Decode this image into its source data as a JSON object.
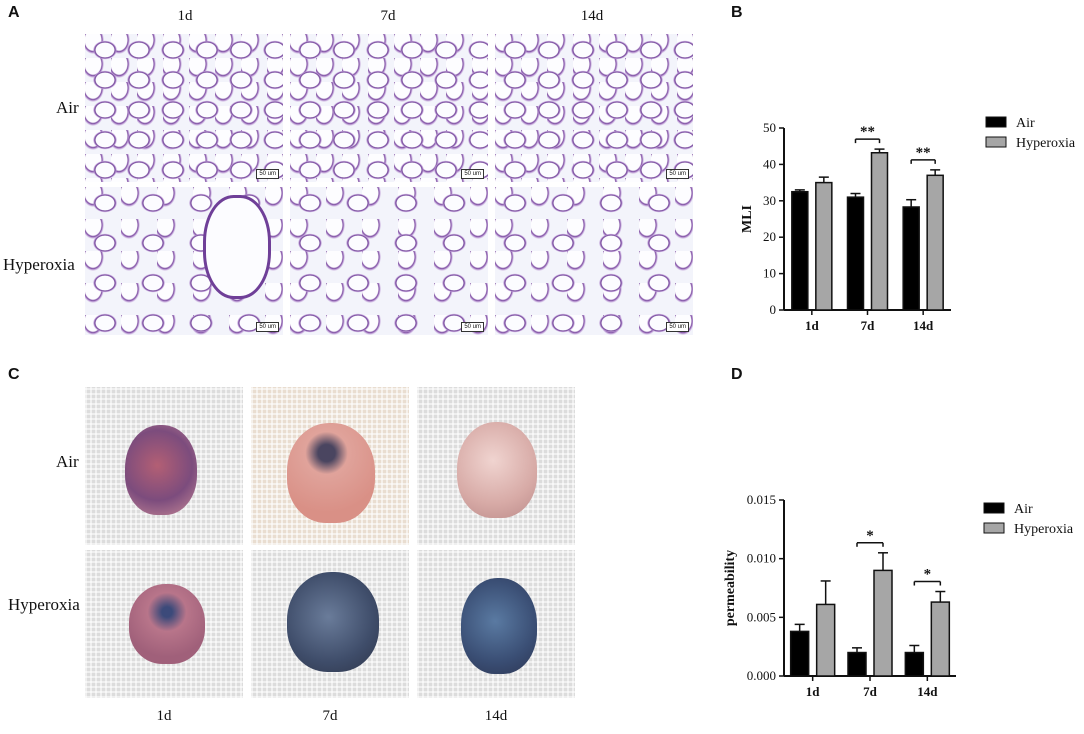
{
  "panels": {
    "a": "A",
    "b": "B",
    "c": "C",
    "d": "D"
  },
  "histology": {
    "columns": [
      "1d",
      "7d",
      "14d"
    ],
    "rows": [
      "Air",
      "Hyperoxia"
    ],
    "scale_label": "50 um"
  },
  "photos": {
    "columns": [
      "1d",
      "7d",
      "14d"
    ],
    "rows": [
      "Air",
      "Hyperoxia"
    ]
  },
  "colors": {
    "air": "#000000",
    "hyperoxia": "#a6a6a6"
  },
  "chart_data": [
    {
      "type": "bar",
      "panel": "B",
      "categories": [
        "1d",
        "7d",
        "14d"
      ],
      "series": [
        {
          "name": "Air",
          "values": [
            32.5,
            31,
            28.3
          ],
          "errors": [
            0.5,
            1,
            2
          ]
        },
        {
          "name": "Hyperoxia",
          "values": [
            35,
            43.2,
            37
          ],
          "errors": [
            1.5,
            1,
            1.5
          ]
        }
      ],
      "ylabel": "MLI",
      "ylim": [
        0,
        50
      ],
      "yticks": [
        "0",
        "10",
        "20",
        "30",
        "40",
        "50"
      ],
      "significance": [
        {
          "category": "7d",
          "label": "**"
        },
        {
          "category": "14d",
          "label": "**"
        }
      ],
      "legend": "top-right"
    },
    {
      "type": "bar",
      "panel": "D",
      "categories": [
        "1d",
        "7d",
        "14d"
      ],
      "series": [
        {
          "name": "Air",
          "values": [
            0.0038,
            0.002,
            0.002
          ],
          "errors": [
            0.0006,
            0.0004,
            0.0006
          ]
        },
        {
          "name": "Hyperoxia",
          "values": [
            0.0061,
            0.009,
            0.0063
          ],
          "errors": [
            0.002,
            0.0015,
            0.0009
          ]
        }
      ],
      "ylabel": "permeability",
      "ylim": [
        0,
        0.015
      ],
      "yticks": [
        "0.000",
        "0.005",
        "0.010",
        "0.015"
      ],
      "significance": [
        {
          "category": "7d",
          "label": "*"
        },
        {
          "category": "14d",
          "label": "*"
        }
      ],
      "legend": "top-right"
    }
  ]
}
